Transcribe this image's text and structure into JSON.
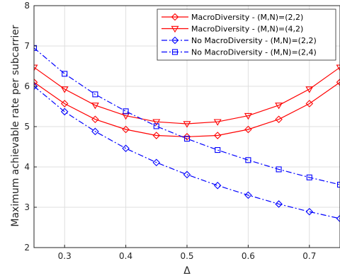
{
  "chart_data": {
    "type": "line",
    "xlabel": "Δ",
    "ylabel": "Maximum achievable rate per subcarrier",
    "xlim": [
      0.25,
      0.75
    ],
    "ylim": [
      2,
      8
    ],
    "xticks": [
      0.3,
      0.4,
      0.5,
      0.6,
      0.7
    ],
    "yticks": [
      2,
      3,
      4,
      5,
      6,
      7,
      8
    ],
    "xtick_labels": [
      "0.3",
      "0.4",
      "0.5",
      "0.6",
      "0.7"
    ],
    "ytick_labels": [
      "2",
      "3",
      "4",
      "5",
      "6",
      "7",
      "8"
    ],
    "grid": true,
    "legend_position": "top-right",
    "series": [
      {
        "name": "MacroDiversity - (M,N)=(2,2)",
        "color": "#ff0000",
        "linestyle": "solid",
        "marker": "diamond",
        "x": [
          0.25,
          0.3,
          0.35,
          0.4,
          0.45,
          0.5,
          0.55,
          0.6,
          0.65,
          0.7,
          0.75
        ],
        "y": [
          6.1,
          5.57,
          5.18,
          4.93,
          4.78,
          4.75,
          4.78,
          4.93,
          5.18,
          5.57,
          6.1
        ]
      },
      {
        "name": "MacroDiversity - (M,N)=(4,2)",
        "color": "#ff0000",
        "linestyle": "solid",
        "marker": "triangle-down",
        "x": [
          0.25,
          0.3,
          0.35,
          0.4,
          0.45,
          0.5,
          0.55,
          0.6,
          0.65,
          0.7,
          0.75
        ],
        "y": [
          6.47,
          5.93,
          5.53,
          5.27,
          5.12,
          5.07,
          5.12,
          5.27,
          5.53,
          5.93,
          6.47
        ]
      },
      {
        "name": "No MacroDiversity - (M,N)=(2,2)",
        "color": "#0000ff",
        "linestyle": "dashdot",
        "marker": "diamond",
        "x": [
          0.25,
          0.3,
          0.35,
          0.4,
          0.45,
          0.5,
          0.55,
          0.6,
          0.65,
          0.7,
          0.75
        ],
        "y": [
          6.0,
          5.37,
          4.88,
          4.46,
          4.11,
          3.81,
          3.54,
          3.3,
          3.08,
          2.89,
          2.72
        ]
      },
      {
        "name": "No MacroDiversity - (M,N)=(2,4)",
        "color": "#0000ff",
        "linestyle": "dashdot",
        "marker": "square",
        "x": [
          0.25,
          0.3,
          0.35,
          0.4,
          0.45,
          0.5,
          0.55,
          0.6,
          0.65,
          0.7,
          0.75
        ],
        "y": [
          6.95,
          6.31,
          5.8,
          5.38,
          5.01,
          4.7,
          4.42,
          4.17,
          3.94,
          3.74,
          3.56
        ]
      }
    ]
  }
}
